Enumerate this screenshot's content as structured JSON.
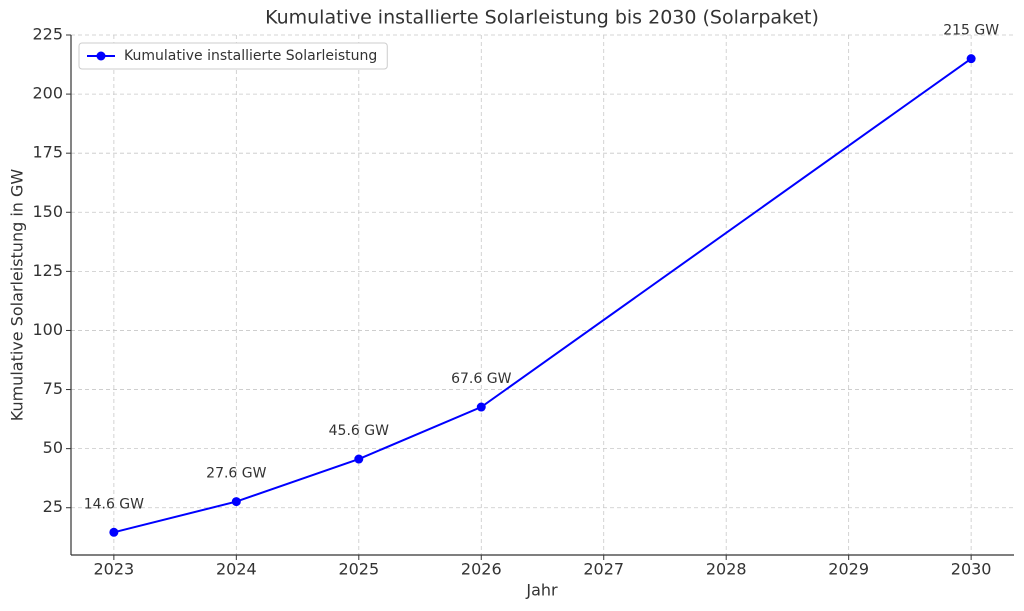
{
  "chart_data": {
    "type": "line",
    "title": "Kumulative installierte Solarleistung bis 2030 (Solarpaket)",
    "x_label": "Jahr",
    "y_label": "Kumulative Solarleistung in GW",
    "x": [
      2023,
      2024,
      2025,
      2026,
      2030
    ],
    "series": [
      {
        "name": "Kumulative installierte Solarleistung",
        "color": "#0000ff",
        "values": [
          14.6,
          27.6,
          45.6,
          67.6,
          215
        ],
        "value_labels": [
          "14.6 GW",
          "27.6 GW",
          "45.6 GW",
          "67.6 GW",
          "215 GW"
        ]
      }
    ],
    "xlim": [
      2022.65,
      2030.35
    ],
    "xticks": [
      2023,
      2024,
      2025,
      2026,
      2027,
      2028,
      2029,
      2030
    ],
    "ylim": [
      5,
      225
    ],
    "yticks": [
      25,
      50,
      75,
      100,
      125,
      150,
      175,
      200,
      225
    ],
    "grid": true,
    "legend": "upper-left"
  }
}
